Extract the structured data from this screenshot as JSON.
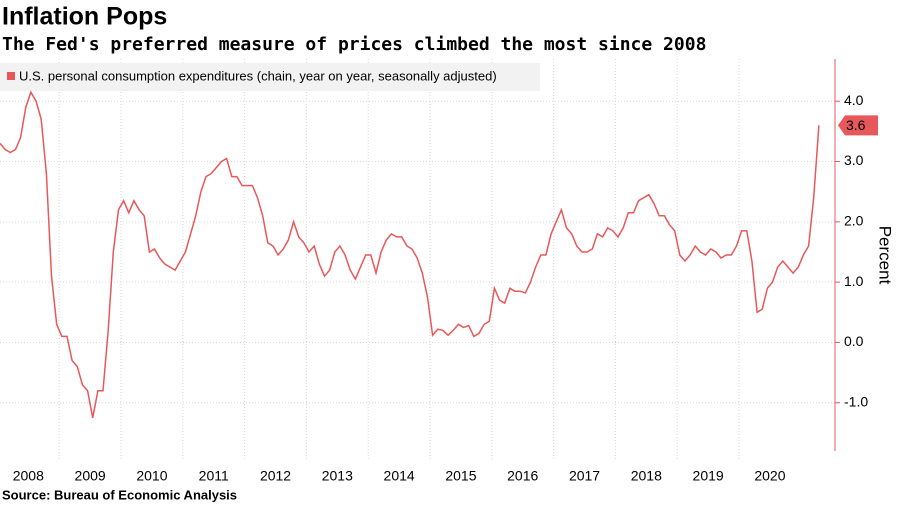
{
  "chart_data": {
    "type": "line",
    "title": "Inflation Pops",
    "subtitle": "The Fed's preferred measure of prices climbed the most since 2008",
    "source": "Source: Bureau of Economic Analysis",
    "y_axis_label": "Percent",
    "categories": [
      null,
      null,
      null,
      null,
      null,
      "2008",
      null,
      null,
      null,
      null,
      null,
      null,
      null,
      null,
      null,
      null,
      null,
      "2009",
      null,
      null,
      null,
      null,
      null,
      null,
      null,
      null,
      null,
      null,
      null,
      "2010",
      null,
      null,
      null,
      null,
      null,
      null,
      null,
      null,
      null,
      null,
      null,
      "2011",
      null,
      null,
      null,
      null,
      null,
      null,
      null,
      null,
      null,
      null,
      null,
      "2012",
      null,
      null,
      null,
      null,
      null,
      null,
      null,
      null,
      null,
      null,
      null,
      "2013",
      null,
      null,
      null,
      null,
      null,
      null,
      null,
      null,
      null,
      null,
      null,
      "2014",
      null,
      null,
      null,
      null,
      null,
      null,
      null,
      null,
      null,
      null,
      null,
      "2015",
      null,
      null,
      null,
      null,
      null,
      null,
      null,
      null,
      null,
      null,
      null,
      "2016",
      null,
      null,
      null,
      null,
      null,
      null,
      null,
      null,
      null,
      null,
      null,
      "2017",
      null,
      null,
      null,
      null,
      null,
      null,
      null,
      null,
      null,
      null,
      null,
      "2018",
      null,
      null,
      null,
      null,
      null,
      null,
      null,
      null,
      null,
      null,
      null,
      "2019",
      null,
      null,
      null,
      null,
      null,
      null,
      null,
      null,
      null,
      null,
      null,
      "2020",
      null,
      null,
      null,
      null,
      null,
      null,
      null,
      null,
      null,
      null
    ],
    "series": [
      {
        "name": "U.S. personal consumption expenditures (chain, year on year, seasonally adjusted)",
        "color": "#e8585a",
        "values": [
          3.3,
          3.2,
          3.15,
          3.2,
          3.4,
          3.9,
          4.15,
          4.0,
          3.7,
          2.8,
          1.1,
          0.3,
          0.1,
          0.1,
          -0.3,
          -0.4,
          -0.7,
          -0.8,
          -1.25,
          -0.8,
          -0.8,
          0.2,
          1.5,
          2.2,
          2.35,
          2.15,
          2.35,
          2.2,
          2.1,
          1.5,
          1.55,
          1.4,
          1.3,
          1.25,
          1.2,
          1.35,
          1.5,
          1.8,
          2.1,
          2.5,
          2.75,
          2.8,
          2.9,
          3.0,
          3.05,
          2.75,
          2.75,
          2.6,
          2.6,
          2.6,
          2.4,
          2.1,
          1.65,
          1.6,
          1.45,
          1.55,
          1.7,
          2.0,
          1.75,
          1.65,
          1.5,
          1.6,
          1.3,
          1.1,
          1.2,
          1.5,
          1.6,
          1.45,
          1.2,
          1.05,
          1.25,
          1.45,
          1.45,
          1.15,
          1.5,
          1.7,
          1.8,
          1.75,
          1.75,
          1.6,
          1.55,
          1.4,
          1.15,
          0.75,
          0.12,
          0.22,
          0.2,
          0.12,
          0.2,
          0.3,
          0.25,
          0.28,
          0.1,
          0.15,
          0.3,
          0.35,
          0.9,
          0.7,
          0.65,
          0.9,
          0.85,
          0.85,
          0.82,
          1.0,
          1.25,
          1.45,
          1.45,
          1.8,
          2.0,
          2.2,
          1.9,
          1.8,
          1.6,
          1.5,
          1.5,
          1.55,
          1.8,
          1.75,
          1.9,
          1.85,
          1.75,
          1.9,
          2.15,
          2.15,
          2.35,
          2.4,
          2.45,
          2.3,
          2.1,
          2.1,
          1.95,
          1.85,
          1.45,
          1.35,
          1.45,
          1.6,
          1.5,
          1.45,
          1.55,
          1.5,
          1.4,
          1.45,
          1.45,
          1.6,
          1.85,
          1.85,
          1.35,
          0.5,
          0.55,
          0.9,
          1.0,
          1.25,
          1.35,
          1.25,
          1.15,
          1.25,
          1.45,
          1.6,
          2.4,
          3.6
        ]
      }
    ],
    "ylim": [
      -1.8,
      4.7
    ],
    "yticks": [
      {
        "value": -1,
        "label": "-1.0"
      },
      {
        "value": 0,
        "label": "0.0"
      },
      {
        "value": 1,
        "label": "1.0"
      },
      {
        "value": 2,
        "label": "2.0"
      },
      {
        "value": 3,
        "label": "3.0"
      },
      {
        "value": 4,
        "label": "4.0"
      }
    ],
    "grid": true,
    "legend": "top-left"
  }
}
